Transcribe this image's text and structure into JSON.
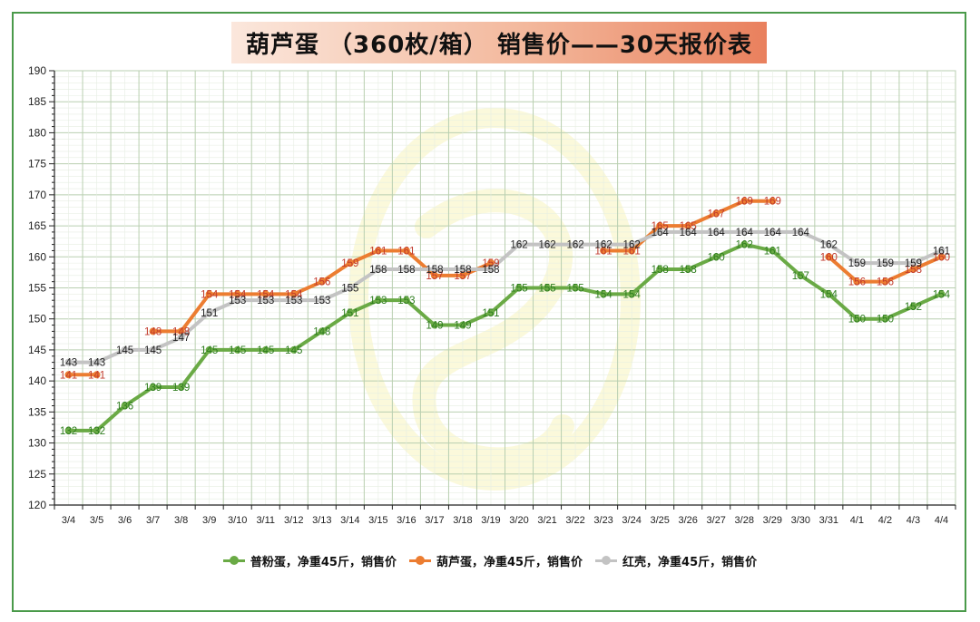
{
  "title": "葫芦蛋 （360枚/箱） 销售价——30天报价表",
  "chart_data": {
    "type": "line",
    "title": "葫芦蛋 （360枚/箱） 销售价——30天报价表",
    "xlabel": "",
    "ylabel": "",
    "ylim": [
      120,
      190
    ],
    "yticks": [
      120,
      125,
      130,
      135,
      140,
      145,
      150,
      155,
      160,
      165,
      170,
      175,
      180,
      185,
      190
    ],
    "grid": true,
    "legend_position": "bottom",
    "categories": [
      "3/4",
      "3/5",
      "3/6",
      "3/7",
      "3/8",
      "3/9",
      "3/10",
      "3/11",
      "3/12",
      "3/13",
      "3/14",
      "3/15",
      "3/16",
      "3/17",
      "3/18",
      "3/19",
      "3/20",
      "3/21",
      "3/22",
      "3/23",
      "3/24",
      "3/25",
      "3/26",
      "3/27",
      "3/28",
      "3/29",
      "3/30",
      "3/31",
      "4/1",
      "4/2",
      "4/3",
      "4/4"
    ],
    "series": [
      {
        "name": "普粉蛋，净重45斤，销售价",
        "color": "#6aaa45",
        "values": [
          132,
          132,
          136,
          139,
          139,
          145,
          145,
          145,
          145,
          148,
          151,
          153,
          153,
          149,
          149,
          151,
          155,
          155,
          155,
          154,
          154,
          158,
          158,
          160,
          162,
          161,
          157,
          154,
          150,
          150,
          152,
          154
        ]
      },
      {
        "name": "葫芦蛋，净重45斤，销售价",
        "color": "#ec7d31",
        "values": [
          141,
          141,
          null,
          148,
          148,
          154,
          154,
          154,
          154,
          156,
          159,
          161,
          161,
          157,
          157,
          159,
          null,
          null,
          null,
          161,
          161,
          165,
          165,
          167,
          169,
          169,
          null,
          160,
          156,
          156,
          158,
          160
        ]
      },
      {
        "name": "红壳，净重45斤，销售价",
        "color": "#c3c3c3",
        "values": [
          143,
          143,
          145,
          145,
          147,
          151,
          153,
          153,
          153,
          153,
          155,
          158,
          158,
          158,
          158,
          158,
          162,
          162,
          162,
          162,
          162,
          164,
          164,
          164,
          164,
          164,
          164,
          162,
          159,
          159,
          159,
          161
        ]
      }
    ]
  }
}
